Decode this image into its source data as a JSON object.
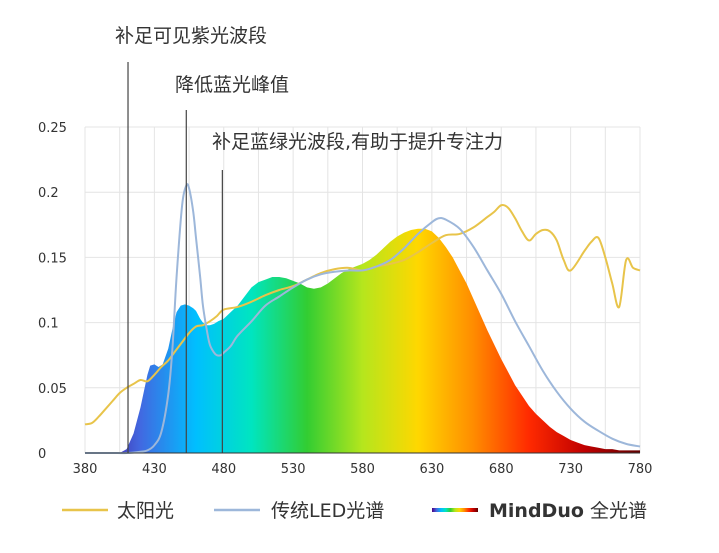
{
  "chart_data": {
    "type": "area",
    "x_ticks": [
      380,
      430,
      480,
      530,
      580,
      630,
      680,
      730,
      780
    ],
    "y_ticks": [
      "0",
      "0.05",
      "0.1",
      "0.15",
      "0.2",
      "0.25"
    ],
    "xlim": [
      380,
      780
    ],
    "ylim": [
      0,
      0.25
    ],
    "grid": "vertical-and-horizontal",
    "legend_placement": "bottom",
    "series": [
      {
        "name": "太阳光",
        "style": "line",
        "color": "#E8C44A",
        "x": [
          380,
          385,
          390,
          395,
          400,
          405,
          410,
          415,
          420,
          425,
          430,
          435,
          440,
          445,
          450,
          455,
          460,
          465,
          470,
          475,
          480,
          490,
          500,
          510,
          520,
          530,
          540,
          550,
          560,
          570,
          580,
          590,
          600,
          610,
          620,
          630,
          640,
          650,
          660,
          670,
          675,
          680,
          685,
          690,
          695,
          700,
          705,
          710,
          715,
          720,
          725,
          730,
          740,
          745,
          750,
          755,
          760,
          765,
          770,
          775,
          780
        ],
        "y": [
          0.022,
          0.023,
          0.028,
          0.034,
          0.04,
          0.046,
          0.05,
          0.053,
          0.056,
          0.055,
          0.06,
          0.066,
          0.071,
          0.078,
          0.085,
          0.092,
          0.097,
          0.098,
          0.101,
          0.105,
          0.11,
          0.112,
          0.116,
          0.121,
          0.125,
          0.128,
          0.133,
          0.138,
          0.141,
          0.142,
          0.14,
          0.143,
          0.145,
          0.148,
          0.154,
          0.161,
          0.167,
          0.168,
          0.173,
          0.181,
          0.185,
          0.19,
          0.188,
          0.18,
          0.17,
          0.163,
          0.168,
          0.171,
          0.17,
          0.163,
          0.148,
          0.14,
          0.155,
          0.162,
          0.165,
          0.15,
          0.13,
          0.112,
          0.148,
          0.142,
          0.14
        ]
      },
      {
        "name": "传统LED光谱",
        "style": "line",
        "color": "#9DB7DA",
        "x": [
          380,
          390,
          400,
          410,
          420,
          425,
          430,
          435,
          440,
          443,
          446,
          450,
          453,
          455,
          458,
          460,
          463,
          465,
          468,
          470,
          473,
          475,
          478,
          480,
          485,
          490,
          500,
          510,
          520,
          530,
          540,
          550,
          560,
          570,
          580,
          590,
          600,
          610,
          620,
          630,
          635,
          640,
          650,
          660,
          670,
          680,
          690,
          700,
          710,
          720,
          730,
          740,
          750,
          760,
          770,
          780
        ],
        "y": [
          0,
          0,
          0,
          0,
          0.001,
          0.002,
          0.006,
          0.016,
          0.045,
          0.08,
          0.135,
          0.19,
          0.205,
          0.203,
          0.185,
          0.165,
          0.135,
          0.113,
          0.093,
          0.083,
          0.077,
          0.075,
          0.075,
          0.077,
          0.082,
          0.09,
          0.101,
          0.113,
          0.12,
          0.127,
          0.133,
          0.137,
          0.139,
          0.14,
          0.14,
          0.143,
          0.148,
          0.157,
          0.168,
          0.177,
          0.18,
          0.179,
          0.172,
          0.158,
          0.14,
          0.122,
          0.101,
          0.082,
          0.063,
          0.047,
          0.034,
          0.024,
          0.017,
          0.011,
          0.007,
          0.005
        ]
      },
      {
        "name": "MindDuo 全光谱",
        "style": "filled-area",
        "gradient": [
          "#4B0082",
          "#4169E1",
          "#00BFFF",
          "#00E5C0",
          "#32CD32",
          "#B5E61D",
          "#FFD700",
          "#FF8C00",
          "#FF2A00",
          "#C00000",
          "#600000"
        ],
        "x": [
          380,
          390,
          400,
          405,
          410,
          415,
          420,
          423,
          425,
          427,
          430,
          433,
          436,
          440,
          443,
          446,
          449,
          452,
          455,
          458,
          460,
          463,
          465,
          468,
          470,
          473,
          476,
          480,
          485,
          490,
          495,
          500,
          505,
          510,
          515,
          520,
          525,
          530,
          535,
          540,
          545,
          550,
          555,
          560,
          565,
          570,
          575,
          580,
          585,
          590,
          595,
          600,
          605,
          610,
          615,
          620,
          625,
          630,
          635,
          640,
          645,
          650,
          655,
          660,
          665,
          670,
          675,
          680,
          685,
          690,
          695,
          700,
          705,
          710,
          715,
          720,
          725,
          730,
          735,
          740,
          745,
          750,
          755,
          760,
          765,
          770,
          775,
          780
        ],
        "y": [
          0,
          0,
          0,
          0,
          0.003,
          0.015,
          0.035,
          0.05,
          0.06,
          0.067,
          0.068,
          0.066,
          0.068,
          0.08,
          0.095,
          0.108,
          0.113,
          0.114,
          0.113,
          0.111,
          0.109,
          0.103,
          0.1,
          0.098,
          0.098,
          0.099,
          0.101,
          0.103,
          0.108,
          0.113,
          0.12,
          0.127,
          0.131,
          0.133,
          0.135,
          0.135,
          0.134,
          0.132,
          0.13,
          0.127,
          0.126,
          0.127,
          0.13,
          0.134,
          0.138,
          0.141,
          0.143,
          0.145,
          0.148,
          0.152,
          0.157,
          0.162,
          0.166,
          0.169,
          0.171,
          0.172,
          0.172,
          0.17,
          0.165,
          0.158,
          0.15,
          0.14,
          0.13,
          0.118,
          0.106,
          0.094,
          0.083,
          0.072,
          0.062,
          0.052,
          0.044,
          0.036,
          0.03,
          0.025,
          0.02,
          0.016,
          0.013,
          0.01,
          0.008,
          0.006,
          0.005,
          0.004,
          0.003,
          0.003,
          0.002,
          0.002,
          0.002,
          0.002
        ]
      }
    ],
    "annotations": [
      {
        "text": "补足可见紫光波段",
        "x": 411
      },
      {
        "text": "降低蓝光峰值",
        "x": 453
      },
      {
        "text": "补足蓝绿光波段,有助于提升专注力",
        "x": 479
      }
    ]
  }
}
